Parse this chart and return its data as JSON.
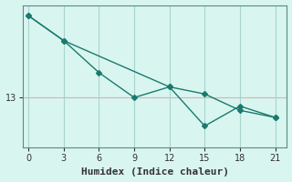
{
  "xlabel": "Humidex (Indice chaleur)",
  "ylabel": "",
  "background_color": "#d9f5f0",
  "line_color": "#1a7a6e",
  "grid_color_h": "#d9b0b0",
  "grid_color_v": "#a8d4ce",
  "x_ticks": [
    0,
    3,
    6,
    9,
    12,
    15,
    18,
    21
  ],
  "y_ticks": [
    13
  ],
  "xlim": [
    -0.5,
    22
  ],
  "ylim": [
    12.3,
    14.3
  ],
  "series1_x": [
    0,
    3,
    12,
    15,
    18,
    21
  ],
  "series1_y": [
    14.15,
    13.8,
    13.15,
    13.05,
    12.82,
    12.72
  ],
  "series2_x": [
    0,
    3,
    6,
    9,
    12,
    15,
    18,
    21
  ],
  "series2_y": [
    14.15,
    13.8,
    13.35,
    13.0,
    13.15,
    12.6,
    12.88,
    12.72
  ],
  "font_color": "#333333",
  "tick_label_fontsize": 7,
  "xlabel_fontsize": 8,
  "marker": "D",
  "marker_size": 3,
  "linewidth": 1.0
}
